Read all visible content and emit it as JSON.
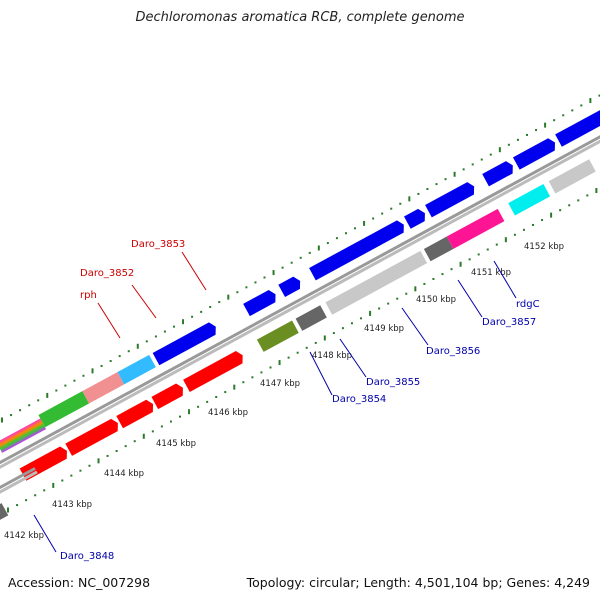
{
  "title": "Dechloromonas aromatica RCB, complete genome",
  "accession": "Accession: NC_007298",
  "summary": "Topology: circular; Length: 4,501,104 bp; Genes: 4,249",
  "ticks": [
    "4142 kbp",
    "4143 kbp",
    "4144 kbp",
    "4145 kbp",
    "4146 kbp",
    "4147 kbp",
    "4148 kbp",
    "4149 kbp",
    "4150 kbp",
    "4151 kbp",
    "4152 kbp"
  ],
  "gene_labels": {
    "daro3853": "Daro_3853",
    "daro3852": "Daro_3852",
    "rph": "rph",
    "daro3854": "Daro_3854",
    "daro3855": "Daro_3855",
    "daro3856": "Daro_3856",
    "daro3857": "Daro_3857",
    "rdgc": "rdgC",
    "daro3848": "Daro_3848"
  },
  "colors": {
    "red": "#ff0000",
    "blue": "#0000ee",
    "grey": "#c8c8c8",
    "darkgrey": "#666666",
    "tick": "#2a7a2a"
  }
}
